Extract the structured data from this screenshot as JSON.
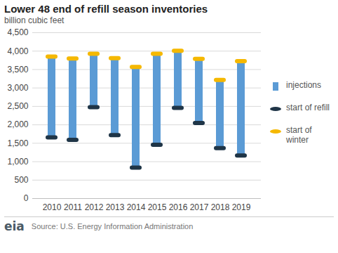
{
  "chart_data": {
    "type": "bar",
    "title": "Lower 48 end of refill season inventories",
    "subtitle": "billion cubic feet",
    "categories": [
      "2010",
      "2011",
      "2012",
      "2013",
      "2014",
      "2015",
      "2016",
      "2017",
      "2018",
      "2019"
    ],
    "stacked": true,
    "series": [
      {
        "name": "injections",
        "type": "bar",
        "color": "#5b9bd5",
        "values": [
          2190,
          2210,
          1450,
          2090,
          2730,
          2470,
          1550,
          1740,
          1850,
          2560
        ]
      },
      {
        "name": "start of refill",
        "type": "scatter",
        "marker": "ellipse",
        "color": "#1f3547",
        "values": [
          1660,
          1590,
          2480,
          1720,
          840,
          1460,
          2460,
          2050,
          1370,
          1170
        ]
      },
      {
        "name": "start of winter",
        "type": "scatter",
        "marker": "ellipse",
        "color": "#f5b800",
        "values": [
          3850,
          3800,
          3930,
          3810,
          3570,
          3930,
          4010,
          3790,
          3220,
          3730
        ]
      }
    ],
    "ylim": [
      0,
      4500
    ],
    "yticks": [
      0,
      {
        "value": 500,
        "label": "500"
      },
      {
        "value": 1000,
        "label": "1,000"
      },
      {
        "value": 1500,
        "label": "1,500"
      },
      {
        "value": 2000,
        "label": "2,000"
      },
      {
        "value": 2500,
        "label": "2,500"
      },
      {
        "value": 3000,
        "label": "3,000"
      },
      {
        "value": 3500,
        "label": "3,500"
      },
      {
        "value": 4000,
        "label": "4,000"
      },
      {
        "value": 4500,
        "label": "4,500"
      }
    ],
    "grid": true,
    "legend": "right",
    "source": "Source: U.S. Energy Information Administration",
    "logo": "eia"
  }
}
